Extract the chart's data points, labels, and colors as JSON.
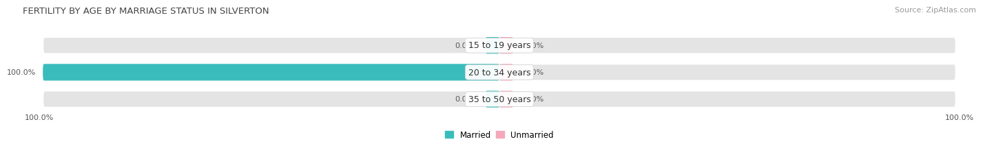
{
  "title": "FERTILITY BY AGE BY MARRIAGE STATUS IN SILVERTON",
  "source": "Source: ZipAtlas.com",
  "categories": [
    "15 to 19 years",
    "20 to 34 years",
    "35 to 50 years"
  ],
  "married_values": [
    0.0,
    100.0,
    0.0
  ],
  "unmarried_values": [
    0.0,
    0.0,
    0.0
  ],
  "married_color": "#3bbcbc",
  "unmarried_color": "#f5a8bc",
  "bar_bg_color": "#e4e4e4",
  "bar_height": 0.62,
  "label_left_bottom": "100.0%",
  "label_right_bottom": "100.0%",
  "title_fontsize": 9.5,
  "source_fontsize": 8,
  "value_fontsize": 8,
  "cat_fontsize": 9,
  "legend_fontsize": 8.5,
  "background_color": "#ffffff"
}
